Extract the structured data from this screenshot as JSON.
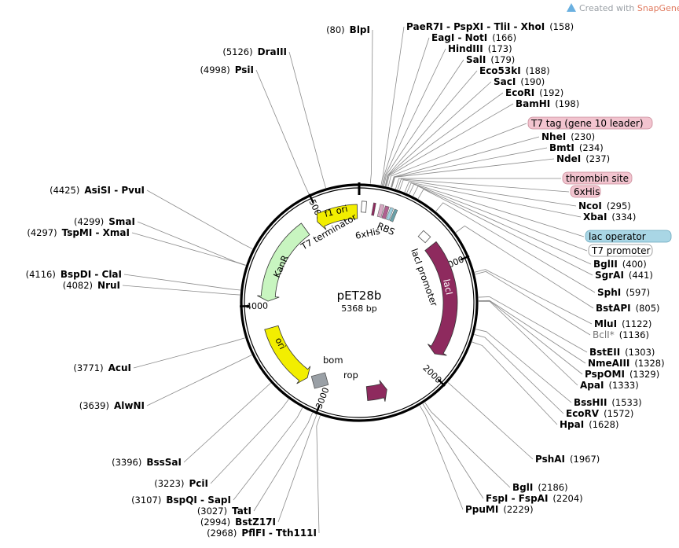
{
  "credit": {
    "prefix": "Created with ",
    "brand": "SnapGene",
    "suffix": "®",
    "brand_color": "#e07a5f"
  },
  "plasmid": {
    "name": "pET28b",
    "size": "5368 bp",
    "length": 5368
  },
  "ticks": [
    {
      "pos": 1000,
      "label": "1000"
    },
    {
      "pos": 2000,
      "label": "2000"
    },
    {
      "pos": 3000,
      "label": "3000"
    },
    {
      "pos": 4000,
      "label": "4000"
    },
    {
      "pos": 5000,
      "label": "5000"
    }
  ],
  "enzymes_right": [
    {
      "name": "PaeR7I - PspXI - TliI - XhoI",
      "pos": "158",
      "site": 158
    },
    {
      "name": "EagI - NotI",
      "pos": "166",
      "site": 166
    },
    {
      "name": "HindIII",
      "pos": "173",
      "site": 173
    },
    {
      "name": "SalI",
      "pos": "179",
      "site": 179
    },
    {
      "name": "Eco53kI",
      "pos": "188",
      "site": 188
    },
    {
      "name": "SacI",
      "pos": "190",
      "site": 190
    },
    {
      "name": "EcoRI",
      "pos": "192",
      "site": 192
    },
    {
      "name": "BamHI",
      "pos": "198",
      "site": 198
    },
    {
      "name": "NheI",
      "pos": "230",
      "site": 230
    },
    {
      "name": "BmtI",
      "pos": "234",
      "site": 234
    },
    {
      "name": "NdeI",
      "pos": "237",
      "site": 237
    },
    {
      "name": "NcoI",
      "pos": "295",
      "site": 295
    },
    {
      "name": "XbaI",
      "pos": "334",
      "site": 334
    },
    {
      "name": "BglII",
      "pos": "400",
      "site": 400
    },
    {
      "name": "SgrAI",
      "pos": "441",
      "site": 441
    },
    {
      "name": "SphI",
      "pos": "597",
      "site": 597
    },
    {
      "name": "BstAPI",
      "pos": "805",
      "site": 805
    },
    {
      "name": "MluI",
      "pos": "1122",
      "site": 1122
    },
    {
      "name": "BclI*",
      "pos": "1136",
      "site": 1136,
      "grey": true
    },
    {
      "name": "BstEII",
      "pos": "1303",
      "site": 1303
    },
    {
      "name": "NmeAIII",
      "pos": "1328",
      "site": 1328
    },
    {
      "name": "PspOMI",
      "pos": "1329",
      "site": 1329
    },
    {
      "name": "ApaI",
      "pos": "1333",
      "site": 1333
    },
    {
      "name": "BssHII",
      "pos": "1533",
      "site": 1533
    },
    {
      "name": "EcoRV",
      "pos": "1572",
      "site": 1572
    },
    {
      "name": "HpaI",
      "pos": "1628",
      "site": 1628
    },
    {
      "name": "PshAI",
      "pos": "1967",
      "site": 1967
    },
    {
      "name": "BglI",
      "pos": "2186",
      "site": 2186
    },
    {
      "name": "FspI - FspAI",
      "pos": "2204",
      "site": 2204
    },
    {
      "name": "PpuMI",
      "pos": "2229",
      "site": 2229
    }
  ],
  "enzymes_left": [
    {
      "name": "BlpI",
      "pos": "80",
      "site": 80
    },
    {
      "name": "DraIII",
      "pos": "5126",
      "site": 5126
    },
    {
      "name": "PsiI",
      "pos": "4998",
      "site": 4998
    },
    {
      "name": "AsiSI - PvuI",
      "pos": "4425",
      "site": 4425
    },
    {
      "name": "SmaI",
      "pos": "4299",
      "site": 4299
    },
    {
      "name": "TspMI - XmaI",
      "pos": "4297",
      "site": 4297
    },
    {
      "name": "BspDI - ClaI",
      "pos": "4116",
      "site": 4116
    },
    {
      "name": "NruI",
      "pos": "4082",
      "site": 4082
    },
    {
      "name": "AcuI",
      "pos": "3771",
      "site": 3771
    },
    {
      "name": "AlwNI",
      "pos": "3639",
      "site": 3639
    },
    {
      "name": "BssSaI",
      "pos": "3396",
      "site": 3396
    },
    {
      "name": "PciI",
      "pos": "3223",
      "site": 3223
    },
    {
      "name": "BspQI - SapI",
      "pos": "3107",
      "site": 3107
    },
    {
      "name": "TatI",
      "pos": "3027",
      "site": 3027
    },
    {
      "name": "BstZ17I",
      "pos": "2994",
      "site": 2994
    },
    {
      "name": "PflFI - Tth111I",
      "pos": "2968",
      "site": 2968
    }
  ],
  "feature_boxes": [
    {
      "label": "T7 tag (gene 10 leader)",
      "fill": "#f2c4cf",
      "stroke": "#c98b99",
      "site": 210
    },
    {
      "label": "thrombin site",
      "fill": "#f2c4cf",
      "stroke": "#c98b99",
      "site": 265
    },
    {
      "label": "6xHis",
      "fill": "#f2c4cf",
      "stroke": "#c98b99",
      "site": 280
    },
    {
      "label": "lac operator",
      "fill": "#a9d6e5",
      "stroke": "#6aa8bd",
      "site": 350
    },
    {
      "label": "T7 promoter",
      "fill": "#ffffff",
      "stroke": "#888888",
      "site": 370
    }
  ],
  "features": [
    {
      "name": "lacI",
      "start": 770,
      "end": 1850,
      "color": "#8e2a5e",
      "dir": 1
    },
    {
      "name": "lacI promoter",
      "start": 640,
      "end": 700,
      "color": "#ffffff",
      "dir": 1
    },
    {
      "name": "rop",
      "start": 2420,
      "end": 2610,
      "color": "#8e2a5e",
      "dir": -1
    },
    {
      "name": "ori",
      "start": 3200,
      "end": 3790,
      "color": "#f2ee00",
      "dir": -1
    },
    {
      "name": "KanR",
      "start": 4040,
      "end": 4830,
      "color": "#c8f5c0",
      "dir": -1
    },
    {
      "name": "f1 ori",
      "start": 4960,
      "end": 5350,
      "color": "#f2ee00",
      "dir": -1
    }
  ],
  "inner_labels": {
    "t7_terminator": "T7 terminator",
    "six_his": "6xHis",
    "rbs": "RBS",
    "lacI_promoter": "lacI promoter",
    "bom": "bom",
    "rop": "rop",
    "lacI": "lacI",
    "ori": "ori",
    "kanR": "KanR",
    "f1_ori": "f1 ori"
  }
}
